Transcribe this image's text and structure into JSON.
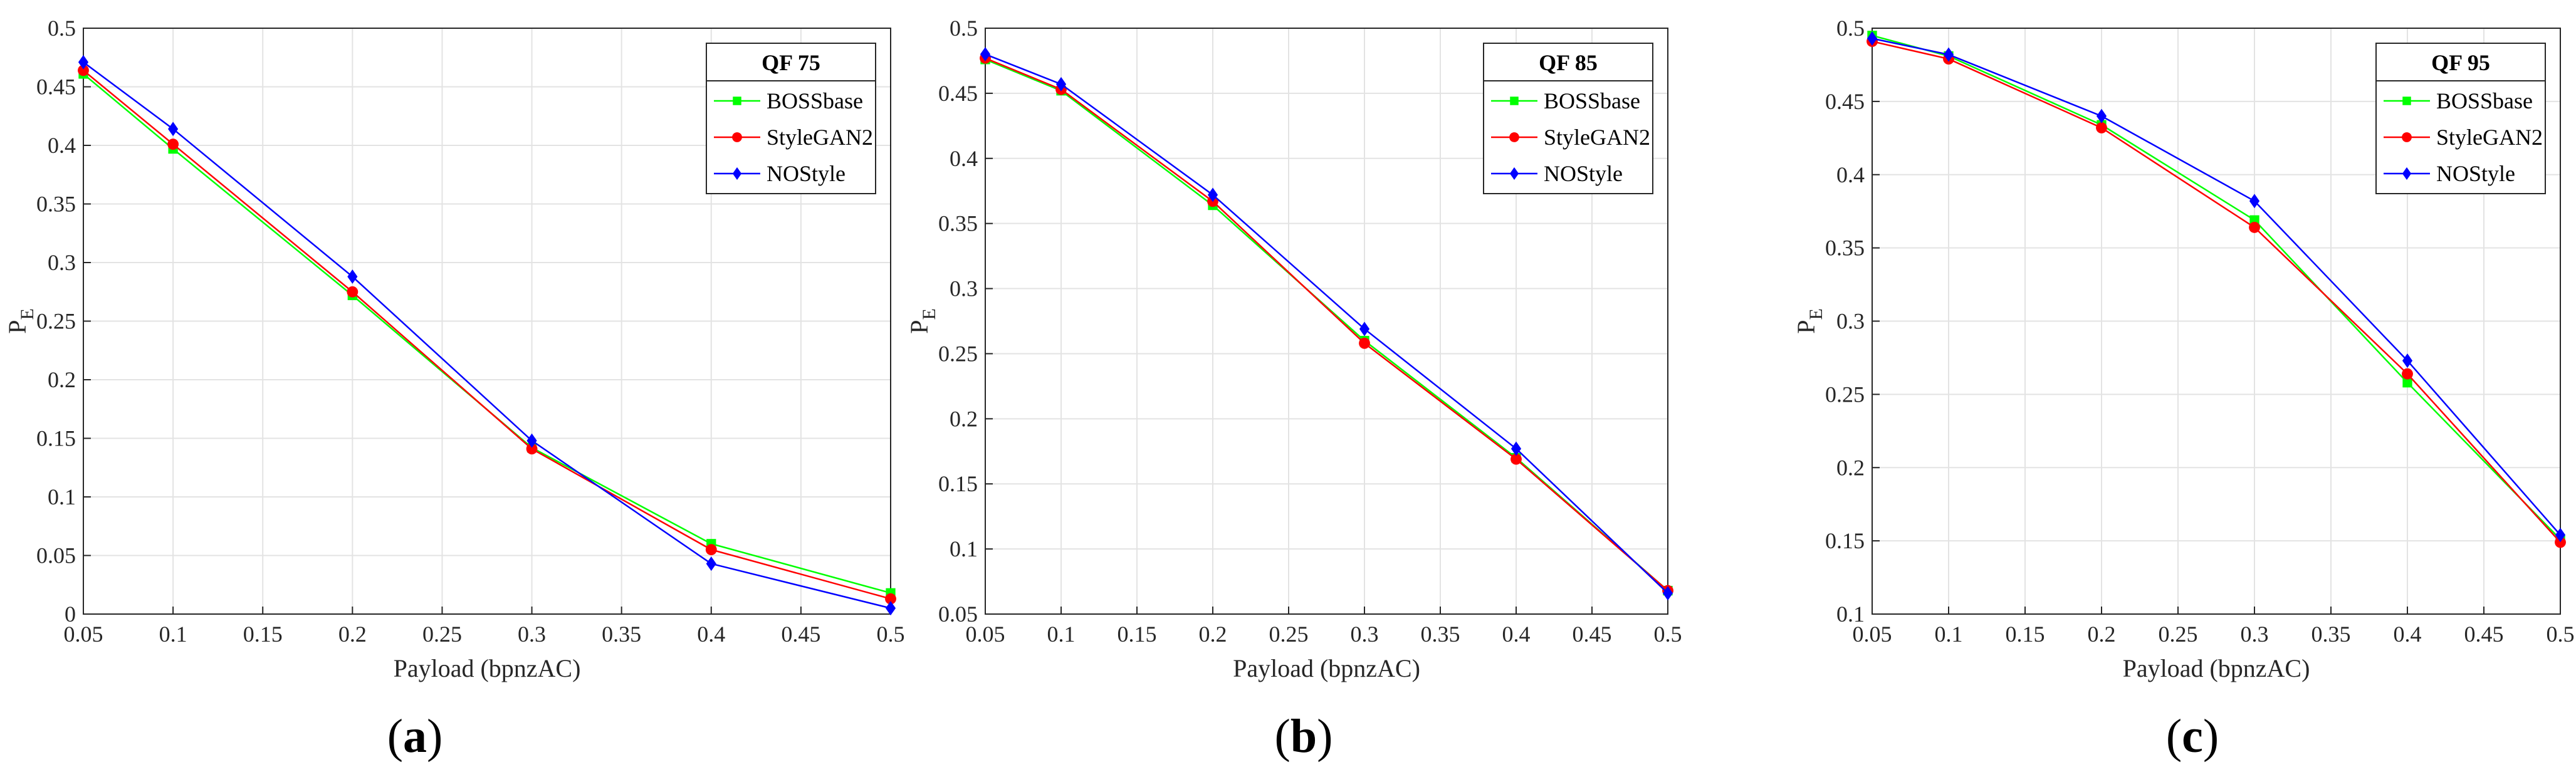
{
  "chart_data": [
    {
      "type": "line",
      "panel": "a",
      "legend_title": "QF 75",
      "xlabel": "Payload (bpnzAC)",
      "ylabel": "P",
      "ylabel_sub": "E",
      "x": [
        0.05,
        0.1,
        0.2,
        0.3,
        0.4,
        0.5
      ],
      "xlim": [
        0.05,
        0.5
      ],
      "ylim": [
        0,
        0.5
      ],
      "xticks": [
        "0.05",
        "0.1",
        "0.15",
        "0.2",
        "0.25",
        "0.3",
        "0.35",
        "0.4",
        "0.45",
        "0.5"
      ],
      "yticks": [
        "0",
        "0.05",
        "0.1",
        "0.15",
        "0.2",
        "0.25",
        "0.3",
        "0.35",
        "0.4",
        "0.45",
        "0.5"
      ],
      "grid": true,
      "legend_position": "top-right",
      "series": [
        {
          "name": "BOSSbase",
          "color": "#00ff00",
          "marker": "square",
          "values": [
            0.461,
            0.397,
            0.272,
            0.142,
            0.06,
            0.018
          ]
        },
        {
          "name": "StyleGAN2",
          "color": "#ff0000",
          "marker": "circle",
          "values": [
            0.464,
            0.401,
            0.275,
            0.141,
            0.055,
            0.013
          ]
        },
        {
          "name": "NOStyle",
          "color": "#0000ff",
          "marker": "diamond",
          "values": [
            0.471,
            0.414,
            0.288,
            0.148,
            0.043,
            0.005
          ]
        }
      ]
    },
    {
      "type": "line",
      "panel": "b",
      "legend_title": "QF 85",
      "xlabel": "Payload (bpnzAC)",
      "ylabel": "P",
      "ylabel_sub": "E",
      "x": [
        0.05,
        0.1,
        0.2,
        0.3,
        0.4,
        0.5
      ],
      "xlim": [
        0.05,
        0.5
      ],
      "ylim": [
        0.05,
        0.5
      ],
      "xticks": [
        "0.05",
        "0.1",
        "0.15",
        "0.2",
        "0.25",
        "0.3",
        "0.35",
        "0.4",
        "0.45",
        "0.5"
      ],
      "yticks": [
        "0.05",
        "0.1",
        "0.15",
        "0.2",
        "0.25",
        "0.3",
        "0.35",
        "0.4",
        "0.45",
        "0.5"
      ],
      "grid": true,
      "legend_position": "top-right",
      "series": [
        {
          "name": "BOSSbase",
          "color": "#00ff00",
          "marker": "square",
          "values": [
            0.476,
            0.452,
            0.364,
            0.26,
            0.17,
            0.068
          ]
        },
        {
          "name": "StyleGAN2",
          "color": "#ff0000",
          "marker": "circle",
          "values": [
            0.477,
            0.453,
            0.367,
            0.258,
            0.169,
            0.068
          ]
        },
        {
          "name": "NOStyle",
          "color": "#0000ff",
          "marker": "diamond",
          "values": [
            0.48,
            0.457,
            0.372,
            0.269,
            0.177,
            0.066
          ]
        }
      ]
    },
    {
      "type": "line",
      "panel": "c",
      "legend_title": "QF 95",
      "xlabel": "Payload (bpnzAC)",
      "ylabel": "P",
      "ylabel_sub": "E",
      "x": [
        0.05,
        0.1,
        0.2,
        0.3,
        0.4,
        0.5
      ],
      "xlim": [
        0.05,
        0.5
      ],
      "ylim": [
        0.1,
        0.5
      ],
      "xticks": [
        "0.05",
        "0.1",
        "0.15",
        "0.2",
        "0.25",
        "0.3",
        "0.35",
        "0.4",
        "0.45",
        "0.5"
      ],
      "yticks": [
        "0.1",
        "0.15",
        "0.2",
        "0.25",
        "0.3",
        "0.35",
        "0.4",
        "0.45",
        "0.5"
      ],
      "grid": true,
      "legend_position": "top-right",
      "series": [
        {
          "name": "BOSSbase",
          "color": "#00ff00",
          "marker": "square",
          "values": [
            0.495,
            0.481,
            0.434,
            0.369,
            0.258,
            0.151
          ]
        },
        {
          "name": "StyleGAN2",
          "color": "#ff0000",
          "marker": "circle",
          "values": [
            0.491,
            0.479,
            0.432,
            0.364,
            0.264,
            0.149
          ]
        },
        {
          "name": "NOStyle",
          "color": "#0000ff",
          "marker": "diamond",
          "values": [
            0.493,
            0.482,
            0.44,
            0.382,
            0.273,
            0.154
          ]
        }
      ]
    }
  ],
  "panel_labels": [
    "a",
    "b",
    "c"
  ]
}
